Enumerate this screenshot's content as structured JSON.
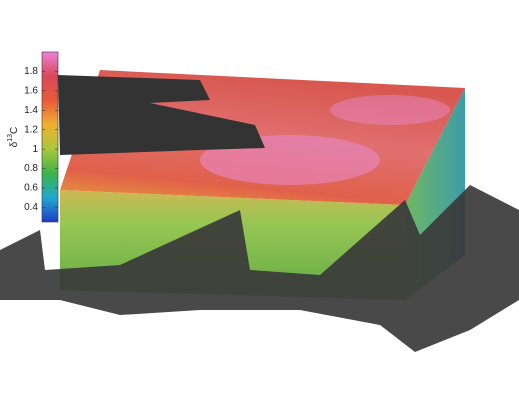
{
  "chart_data": {
    "type": "surface",
    "colorbar": {
      "label": [
        "δ",
        "13",
        "C"
      ],
      "clim": [
        0.25,
        2.0
      ],
      "ticks": [
        1.8,
        1.6,
        1.4,
        1.2,
        1,
        0.8,
        0.6,
        0.4
      ],
      "colormap": [
        "#1e3cc8",
        "#20a8d0",
        "#3cb44a",
        "#a8c83a",
        "#f0b030",
        "#e85a3a",
        "#d8485a",
        "#f080d8"
      ]
    }
  }
}
